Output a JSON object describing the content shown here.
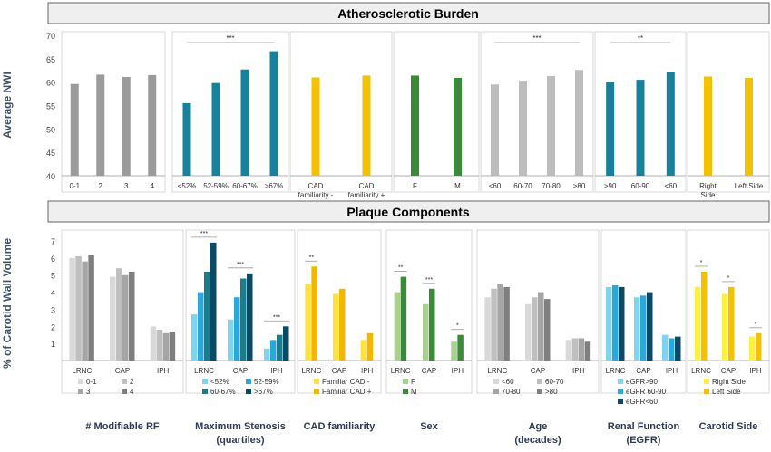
{
  "colors": {
    "gray_dark": "#9b9b9b",
    "teal": "#17809b",
    "gold": "#f2c200",
    "green": "#3a8a3a",
    "gray_light": "#bdbdbd",
    "panel_title_bg": "#efefef",
    "axis_title": "#3d4f6b"
  },
  "section_titles": {
    "top": "Atherosclerotic Burden",
    "bottom": "Plaque Components"
  },
  "top_chart": {
    "ylabel": "Average NWI",
    "ylim": [
      40,
      70
    ],
    "yticks": [
      "40",
      "45",
      "50",
      "55",
      "60",
      "65",
      "70"
    ]
  },
  "bottom_chart": {
    "ylabel": "% of Carotid Wall Volume",
    "ylim": [
      0,
      7
    ],
    "yticks": [
      "1",
      "2",
      "3",
      "4",
      "5",
      "6",
      "7"
    ]
  },
  "bottom_titles": [
    {
      "line1": "# Modifiable RF",
      "line2": ""
    },
    {
      "line1": "Maximum Stenosis",
      "line2": "(quartiles)"
    },
    {
      "line1": "CAD familiarity",
      "line2": ""
    },
    {
      "line1": "Sex",
      "line2": ""
    },
    {
      "line1": "Age",
      "line2": "(decades)"
    },
    {
      "line1": "Renal Function",
      "line2": "(EGFR)"
    },
    {
      "line1": "Carotid Side",
      "line2": ""
    }
  ],
  "chart_data": [
    {
      "type": "bar",
      "title": "Atherosclerotic Burden",
      "ylabel": "Average NWI",
      "ylim": [
        40,
        70
      ],
      "grid": false,
      "groups": [
        {
          "name": "# Modifiable RF",
          "color": "#9b9b9b",
          "categories": [
            "0-1",
            "2",
            "3",
            "4"
          ],
          "values": [
            59.6,
            61.6,
            61.1,
            61.5
          ],
          "significance": []
        },
        {
          "name": "Maximum Stenosis",
          "color": "#17809b",
          "categories": [
            "<52%",
            "52-59%",
            "60-67%",
            ">67%"
          ],
          "values": [
            55.5,
            59.8,
            62.7,
            66.6
          ],
          "significance": [
            "***"
          ]
        },
        {
          "name": "CAD familiarity",
          "color": "#f2c200",
          "categories": [
            "CAD familiarity -",
            "CAD familiarity +"
          ],
          "values": [
            61.0,
            61.4
          ],
          "significance": []
        },
        {
          "name": "Sex",
          "color": "#3a8a3a",
          "categories": [
            "F",
            "M"
          ],
          "values": [
            61.4,
            60.9
          ],
          "significance": []
        },
        {
          "name": "Age",
          "color": "#bdbdbd",
          "categories": [
            "<60",
            "60-70",
            "70-80",
            ">80"
          ],
          "values": [
            59.5,
            60.3,
            61.3,
            62.6
          ],
          "significance": [
            "***"
          ]
        },
        {
          "name": "Renal Function",
          "color": "#17809b",
          "categories": [
            ">90",
            "60-90",
            "<60"
          ],
          "values": [
            60.0,
            60.5,
            62.1
          ],
          "significance": [
            "**"
          ]
        },
        {
          "name": "Carotid Side",
          "color": "#f2c200",
          "categories": [
            "Right Side",
            "Left Side"
          ],
          "values": [
            61.2,
            60.9
          ],
          "significance": []
        }
      ]
    },
    {
      "type": "bar",
      "title": "Plaque Components",
      "ylabel": "% of Carotid Wall Volume",
      "ylim": [
        0,
        7
      ],
      "grid": false,
      "panels": [
        {
          "name": "# Modifiable RF",
          "components": [
            "LRNC",
            "CAP",
            "IPH"
          ],
          "legend": [
            "0-1",
            "2",
            "3",
            "4"
          ],
          "colors": [
            "#d9d9d9",
            "#bfbfbf",
            "#a5a5a5",
            "#7f7f7f"
          ],
          "values": [
            [
              6.0,
              6.1,
              5.8,
              6.2
            ],
            [
              4.9,
              5.4,
              5.0,
              5.2
            ],
            [
              2.0,
              1.8,
              1.6,
              1.7
            ]
          ],
          "significance": []
        },
        {
          "name": "Maximum Stenosis",
          "components": [
            "LRNC",
            "CAP",
            "IPH"
          ],
          "legend": [
            "<52%",
            "52-59%",
            "60-67%",
            ">67%"
          ],
          "colors": [
            "#7fd4ef",
            "#29a9d9",
            "#1a7d8c",
            "#0b4a66"
          ],
          "values": [
            [
              2.7,
              4.0,
              5.2,
              6.9
            ],
            [
              2.4,
              3.7,
              4.8,
              5.1
            ],
            [
              0.7,
              1.2,
              1.5,
              2.0
            ]
          ],
          "significance": [
            "***",
            "***",
            "***"
          ]
        },
        {
          "name": "CAD familiarity",
          "components": [
            "LRNC",
            "CAP",
            "IPH"
          ],
          "legend": [
            "Familiar CAD -",
            "Familiar CAD +"
          ],
          "colors": [
            "#ffe23f",
            "#f2b800"
          ],
          "values": [
            [
              4.5,
              5.5
            ],
            [
              3.9,
              4.2
            ],
            [
              1.2,
              1.6
            ]
          ],
          "significance": [
            "**"
          ]
        },
        {
          "name": "Sex",
          "components": [
            "LRNC",
            "CAP",
            "IPH"
          ],
          "legend": [
            "F",
            "M"
          ],
          "colors": [
            "#a9d18e",
            "#3a8a3a"
          ],
          "values": [
            [
              4.0,
              4.9
            ],
            [
              3.3,
              4.2
            ],
            [
              1.1,
              1.5
            ]
          ],
          "significance": [
            "**",
            "***",
            "*"
          ]
        },
        {
          "name": "Age",
          "components": [
            "LRNC",
            "CAP",
            "IPH"
          ],
          "legend": [
            "<60",
            "60-70",
            "70-80",
            ">80"
          ],
          "colors": [
            "#d9d9d9",
            "#bfbfbf",
            "#a5a5a5",
            "#7f7f7f"
          ],
          "values": [
            [
              3.7,
              4.2,
              4.5,
              4.3
            ],
            [
              3.3,
              3.7,
              4.0,
              3.6
            ],
            [
              1.2,
              1.3,
              1.3,
              1.1
            ]
          ],
          "significance": []
        },
        {
          "name": "Renal Function",
          "components": [
            "LRNC",
            "CAP",
            "IPH"
          ],
          "legend": [
            "eGFR>90",
            "eGFR 60-90",
            "eGFR<60"
          ],
          "colors": [
            "#7fd4ef",
            "#29a9d9",
            "#0b4a66"
          ],
          "values": [
            [
              4.3,
              4.4,
              4.3
            ],
            [
              3.7,
              3.8,
              4.0
            ],
            [
              1.5,
              1.3,
              1.4
            ]
          ],
          "significance": []
        },
        {
          "name": "Carotid Side",
          "components": [
            "LRNC",
            "CAP",
            "IPH"
          ],
          "legend": [
            "Right Side",
            "Left Side"
          ],
          "colors": [
            "#ffef3f",
            "#f2c200"
          ],
          "values": [
            [
              4.3,
              5.2
            ],
            [
              3.9,
              4.3
            ],
            [
              1.4,
              1.6
            ]
          ],
          "significance": [
            "*",
            "*",
            "*"
          ]
        }
      ]
    }
  ]
}
